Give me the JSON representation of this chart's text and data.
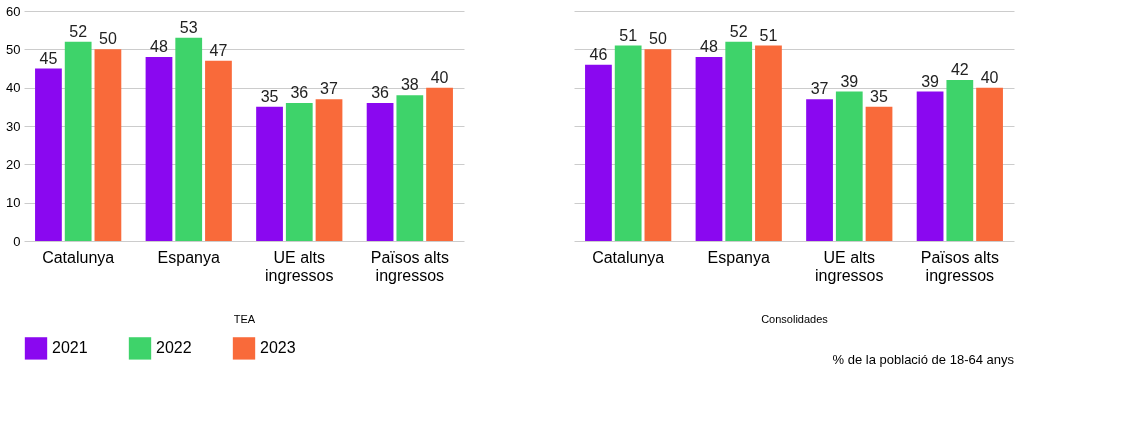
{
  "chart_data": [
    {
      "type": "bar",
      "xlabel": "TEA",
      "categories": [
        "Catalunya",
        "Espanya",
        "UE alts ingressos",
        "Països alts ingressos"
      ],
      "series": [
        {
          "name": "2021",
          "color": "#8a08f0",
          "values": [
            45,
            48,
            35,
            36
          ]
        },
        {
          "name": "2022",
          "color": "#3ed36a",
          "values": [
            52,
            53,
            36,
            38
          ]
        },
        {
          "name": "2023",
          "color": "#f96a3a",
          "values": [
            50,
            47,
            37,
            40
          ]
        }
      ],
      "ylim": [
        0,
        60
      ],
      "yticks": [
        0,
        10,
        20,
        30,
        40,
        50,
        60
      ],
      "grid": "y",
      "data_labels": true,
      "legend": "bottom left"
    },
    {
      "type": "bar",
      "xlabel": "Consolidades",
      "categories": [
        "Catalunya",
        "Espanya",
        "UE alts ingressos",
        "Països alts ingressos"
      ],
      "series": [
        {
          "name": "2021",
          "color": "#8a08f0",
          "values": [
            46,
            48,
            37,
            39
          ]
        },
        {
          "name": "2022",
          "color": "#3ed36a",
          "values": [
            51,
            52,
            39,
            42
          ]
        },
        {
          "name": "2023",
          "color": "#f96a3a",
          "values": [
            50,
            51,
            35,
            40
          ]
        }
      ],
      "ylim": [
        0,
        60
      ],
      "yticks": [
        0,
        10,
        20,
        30,
        40,
        50,
        60
      ],
      "grid": "y",
      "data_labels": true,
      "tick_labels": "x",
      "annotations": [
        "% de la població de 18-64 anys"
      ]
    }
  ]
}
